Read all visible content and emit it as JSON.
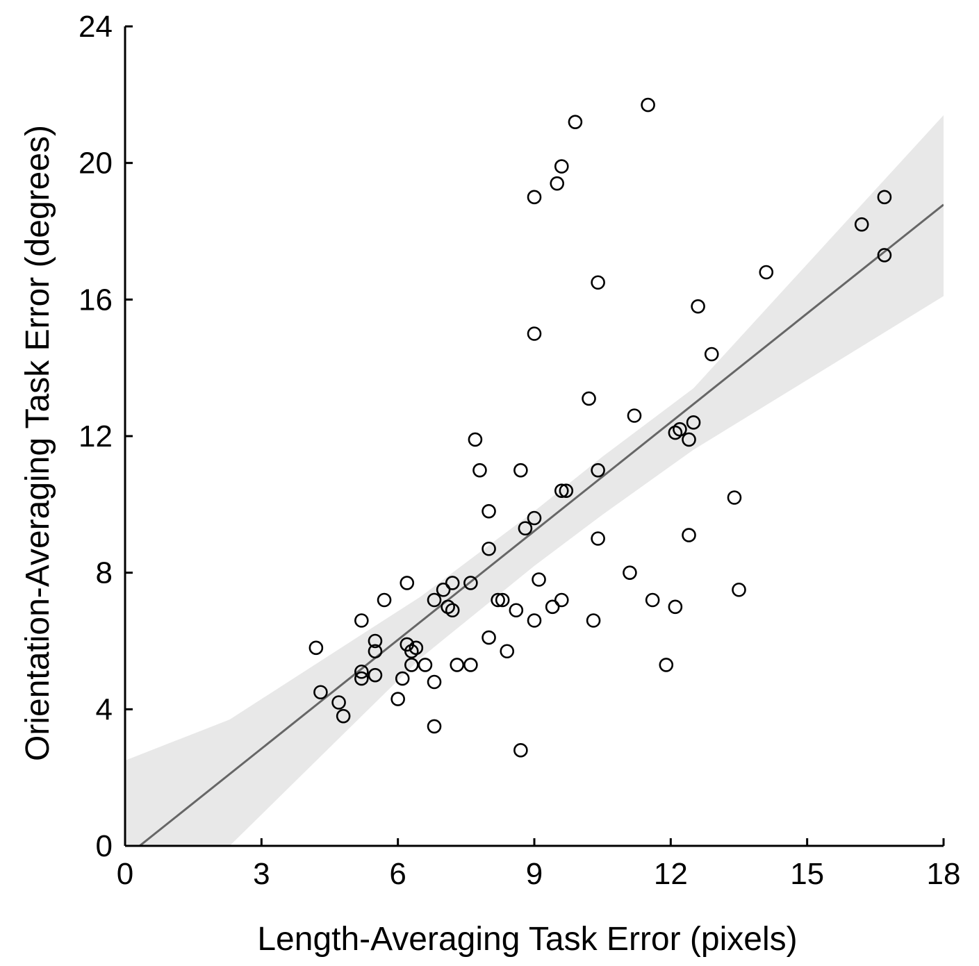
{
  "chart_data": {
    "type": "scatter",
    "title": "",
    "xlabel": "Length-Averaging Task Error (pixels)",
    "ylabel": "Orientation-Averaging Task Error (degrees)",
    "xlim": [
      0,
      18
    ],
    "ylim": [
      0,
      24
    ],
    "xticks": [
      0,
      3,
      6,
      9,
      12,
      15,
      18
    ],
    "yticks": [
      0,
      4,
      8,
      12,
      16,
      20,
      24
    ],
    "xtick_labels": [
      "0",
      "3",
      "6",
      "9",
      "12",
      "15",
      "18"
    ],
    "ytick_labels": [
      "0",
      "4",
      "8",
      "12",
      "16",
      "20",
      "24"
    ],
    "grid": false,
    "colors": {
      "points": "#000000",
      "fit_line": "#666666",
      "confidence_band": "#e8e8e8",
      "axes": "#000000"
    },
    "fit_line": {
      "x": [
        0,
        18
      ],
      "y": [
        -0.34,
        18.78
      ]
    },
    "confidence_band": {
      "x": [
        0,
        2.3,
        6.5,
        9.0,
        10.5,
        12.5,
        18
      ],
      "lower": [
        -3.2,
        0.0,
        5.5,
        8.2,
        9.7,
        11.6,
        16.1
      ],
      "upper": [
        2.5,
        3.7,
        7.3,
        9.8,
        11.4,
        13.4,
        21.4
      ]
    },
    "series": [
      {
        "points": [
          [
            4.2,
            5.8
          ],
          [
            4.3,
            4.5
          ],
          [
            4.7,
            4.2
          ],
          [
            4.8,
            3.8
          ],
          [
            5.2,
            6.6
          ],
          [
            5.2,
            5.1
          ],
          [
            5.2,
            4.9
          ],
          [
            5.5,
            6.0
          ],
          [
            5.5,
            5.7
          ],
          [
            5.5,
            5.0
          ],
          [
            5.7,
            7.2
          ],
          [
            6.0,
            4.3
          ],
          [
            6.1,
            4.9
          ],
          [
            6.2,
            7.7
          ],
          [
            6.2,
            5.9
          ],
          [
            6.3,
            5.7
          ],
          [
            6.3,
            5.3
          ],
          [
            6.4,
            5.8
          ],
          [
            6.6,
            5.3
          ],
          [
            6.8,
            7.2
          ],
          [
            6.8,
            4.8
          ],
          [
            6.8,
            3.5
          ],
          [
            7.0,
            7.5
          ],
          [
            7.1,
            7.0
          ],
          [
            7.2,
            7.7
          ],
          [
            7.2,
            6.9
          ],
          [
            7.3,
            5.3
          ],
          [
            7.6,
            7.7
          ],
          [
            7.6,
            5.3
          ],
          [
            7.7,
            11.9
          ],
          [
            7.8,
            11.0
          ],
          [
            8.0,
            9.8
          ],
          [
            8.0,
            8.7
          ],
          [
            8.0,
            6.1
          ],
          [
            8.2,
            7.2
          ],
          [
            8.3,
            7.2
          ],
          [
            8.4,
            5.7
          ],
          [
            8.6,
            6.9
          ],
          [
            8.7,
            11.0
          ],
          [
            8.7,
            2.8
          ],
          [
            8.8,
            9.3
          ],
          [
            9.0,
            19.0
          ],
          [
            9.0,
            15.0
          ],
          [
            9.0,
            9.6
          ],
          [
            9.0,
            6.6
          ],
          [
            9.1,
            7.8
          ],
          [
            9.4,
            7.0
          ],
          [
            9.5,
            19.4
          ],
          [
            9.6,
            19.9
          ],
          [
            9.6,
            10.4
          ],
          [
            9.6,
            7.2
          ],
          [
            9.7,
            10.4
          ],
          [
            9.9,
            21.2
          ],
          [
            10.2,
            13.1
          ],
          [
            10.3,
            6.6
          ],
          [
            10.4,
            16.5
          ],
          [
            10.4,
            11.0
          ],
          [
            10.4,
            9.0
          ],
          [
            11.1,
            8.0
          ],
          [
            11.2,
            12.6
          ],
          [
            11.5,
            21.7
          ],
          [
            11.6,
            7.2
          ],
          [
            11.9,
            5.3
          ],
          [
            12.1,
            12.1
          ],
          [
            12.1,
            7.0
          ],
          [
            12.2,
            12.2
          ],
          [
            12.4,
            11.9
          ],
          [
            12.4,
            9.1
          ],
          [
            12.5,
            12.4
          ],
          [
            12.6,
            15.8
          ],
          [
            12.9,
            14.4
          ],
          [
            13.4,
            10.2
          ],
          [
            13.5,
            7.5
          ],
          [
            14.1,
            16.8
          ],
          [
            16.2,
            18.2
          ],
          [
            16.7,
            19.0
          ],
          [
            16.7,
            17.3
          ]
        ]
      }
    ]
  }
}
